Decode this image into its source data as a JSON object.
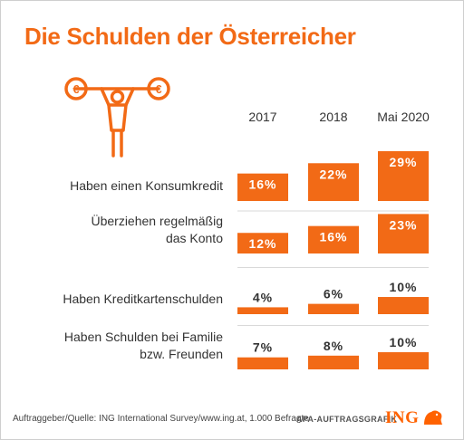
{
  "title": "Die Schulden der Österreicher",
  "source": "Auftraggeber/Quelle: ING International Survey/www.ing.at, 1.000 Befragte",
  "credit": "APA-AUFTRAGSGRAFIK",
  "logo_text": "ING",
  "colors": {
    "accent": "#f26a16",
    "bar": "#f26a16",
    "text": "#333333",
    "divider": "#d9d9d9"
  },
  "icon": {
    "name": "weightlifter-euro-icon",
    "plate_symbol": "€"
  },
  "chart_data": {
    "type": "bar",
    "title": "Die Schulden der Österreicher",
    "unit": "%",
    "categories": [
      "2017",
      "2018",
      "Mai 2020"
    ],
    "rows": [
      {
        "label_lines": [
          "Haben einen Konsumkredit"
        ],
        "values": [
          16,
          22,
          29
        ]
      },
      {
        "label_lines": [
          "Überziehen regelmäßig",
          "das Konto"
        ],
        "values": [
          12,
          16,
          23
        ]
      },
      {
        "label_lines": [
          "Haben Kreditkartenschulden"
        ],
        "values": [
          4,
          6,
          10
        ]
      },
      {
        "label_lines": [
          "Haben Schulden bei Familie",
          "bzw. Freunden"
        ],
        "values": [
          7,
          8,
          10
        ]
      }
    ],
    "ylim": [
      0,
      29
    ]
  }
}
